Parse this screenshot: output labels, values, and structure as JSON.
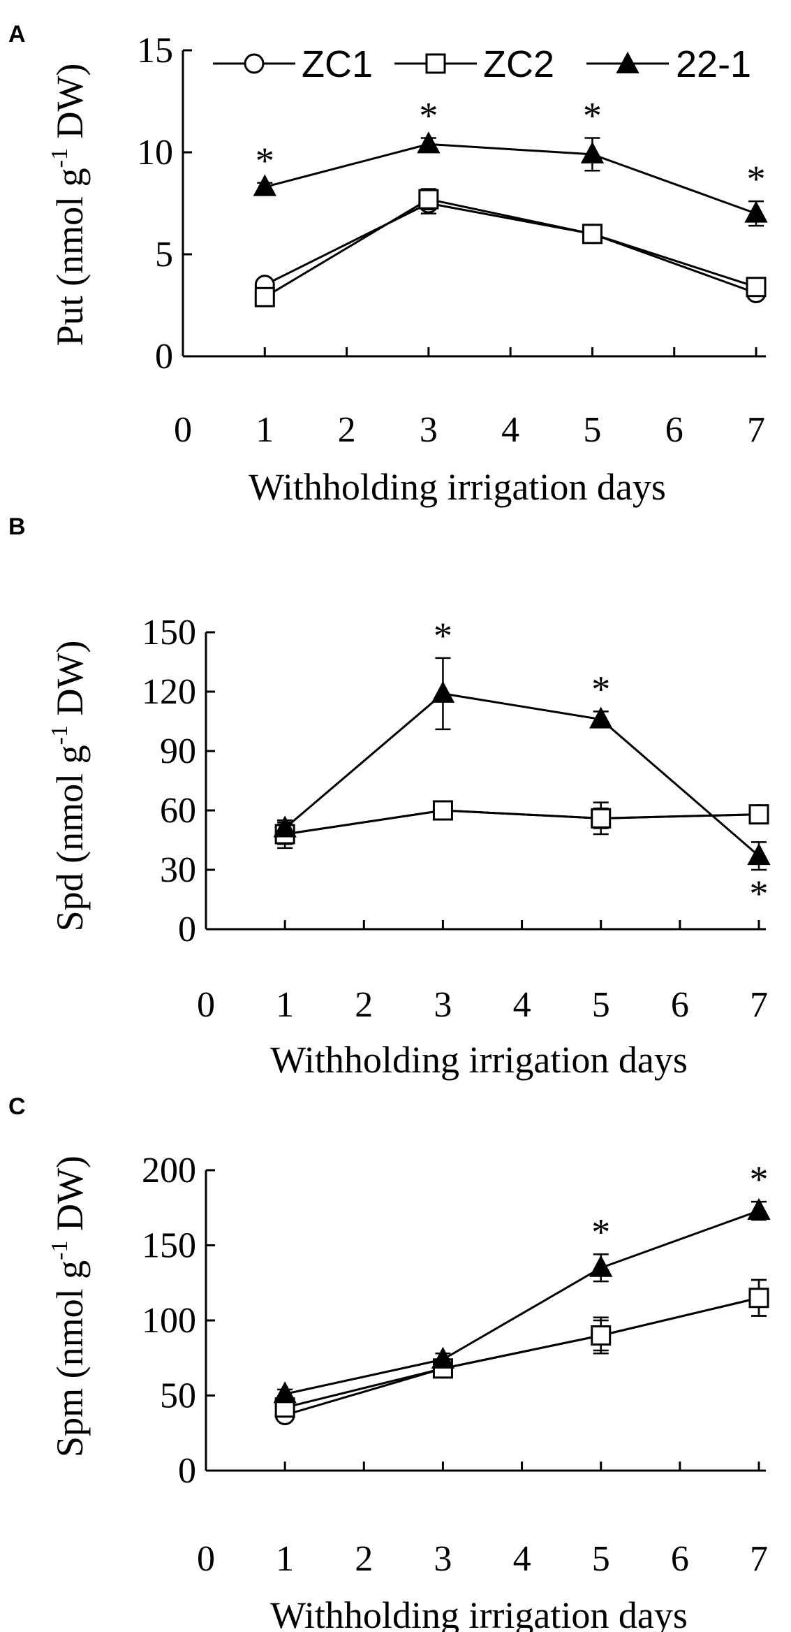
{
  "chart_data": [
    {
      "type": "line",
      "panel": "A",
      "xlabel": "Withholding irrigation days",
      "ylabel": "Put (nmol g",
      "ylabel_sup": "-1",
      "ylabel_suffix": " DW)",
      "xlim": [
        0,
        7
      ],
      "ylim": [
        0,
        15
      ],
      "xticks": [
        "0",
        "1",
        "2",
        "3",
        "4",
        "5",
        "6",
        "7"
      ],
      "yticks": [
        "0",
        "5",
        "10",
        "15"
      ],
      "grid": false,
      "legend_position": "top",
      "series": [
        {
          "name": "ZC1",
          "marker": "circle",
          "x": [
            1,
            3,
            5,
            7
          ],
          "values": [
            3.5,
            7.5,
            6.0,
            3.1
          ],
          "errors": [
            0.2,
            0.5,
            0.3,
            0.3
          ]
        },
        {
          "name": "ZC2",
          "marker": "square",
          "x": [
            1,
            3,
            5,
            7
          ],
          "values": [
            2.9,
            7.7,
            6.0,
            3.4
          ],
          "errors": [
            0.2,
            0.5,
            0.3,
            0.3
          ]
        },
        {
          "name": "22-1",
          "marker": "triangle",
          "x": [
            1,
            3,
            5,
            7
          ],
          "values": [
            8.3,
            10.4,
            9.9,
            7.0
          ],
          "errors": [
            0.2,
            0.3,
            0.8,
            0.6
          ]
        }
      ],
      "significance_labels": [
        "*",
        "*",
        "*",
        "*"
      ]
    },
    {
      "type": "line",
      "panel": "B",
      "xlabel": "Withholding irrigation days",
      "ylabel": "Spd (nmol g",
      "ylabel_sup": "-1",
      "ylabel_suffix": " DW)",
      "xlim": [
        0,
        7
      ],
      "ylim": [
        0,
        150
      ],
      "xticks": [
        "0",
        "1",
        "2",
        "3",
        "4",
        "5",
        "6",
        "7"
      ],
      "yticks": [
        "0",
        "30",
        "60",
        "90",
        "120",
        "150"
      ],
      "grid": false,
      "series": [
        {
          "name": "ZC1",
          "marker": "circle",
          "x": [
            1,
            3,
            5,
            7
          ],
          "values": [
            48,
            60,
            56,
            58
          ],
          "errors": [
            5,
            3,
            5,
            3
          ]
        },
        {
          "name": "ZC2",
          "marker": "square",
          "x": [
            1,
            3,
            5,
            7
          ],
          "values": [
            48,
            60,
            56,
            58
          ],
          "errors": [
            7,
            3,
            8,
            4
          ]
        },
        {
          "name": "22-1",
          "marker": "triangle",
          "x": [
            1,
            3,
            5,
            7
          ],
          "values": [
            51,
            119,
            106,
            37
          ],
          "errors": [
            3,
            18,
            4,
            7
          ]
        }
      ],
      "significance_labels": [
        "*",
        "*",
        "*"
      ]
    },
    {
      "type": "line",
      "panel": "C",
      "xlabel": "Withholding irrigation days",
      "ylabel": "Spm (nmol g",
      "ylabel_sup": "-1",
      "ylabel_suffix": " DW)",
      "xlim": [
        0,
        7
      ],
      "ylim": [
        0,
        200
      ],
      "xticks": [
        "0",
        "1",
        "2",
        "3",
        "4",
        "5",
        "6",
        "7"
      ],
      "yticks": [
        "0",
        "50",
        "100",
        "150",
        "200"
      ],
      "grid": false,
      "series": [
        {
          "name": "ZC1",
          "marker": "circle",
          "x": [
            1,
            3,
            5,
            7
          ],
          "values": [
            37,
            68,
            90,
            115
          ],
          "errors": [
            3,
            4,
            10,
            12
          ]
        },
        {
          "name": "ZC2",
          "marker": "square",
          "x": [
            1,
            3,
            5,
            7
          ],
          "values": [
            42,
            68,
            90,
            115
          ],
          "errors": [
            3,
            4,
            12,
            12
          ]
        },
        {
          "name": "22-1",
          "marker": "triangle",
          "x": [
            1,
            3,
            5,
            7
          ],
          "values": [
            51,
            74,
            135,
            173
          ],
          "errors": [
            3,
            4,
            9,
            6
          ]
        }
      ],
      "significance_labels": [
        "*",
        "*"
      ]
    }
  ]
}
